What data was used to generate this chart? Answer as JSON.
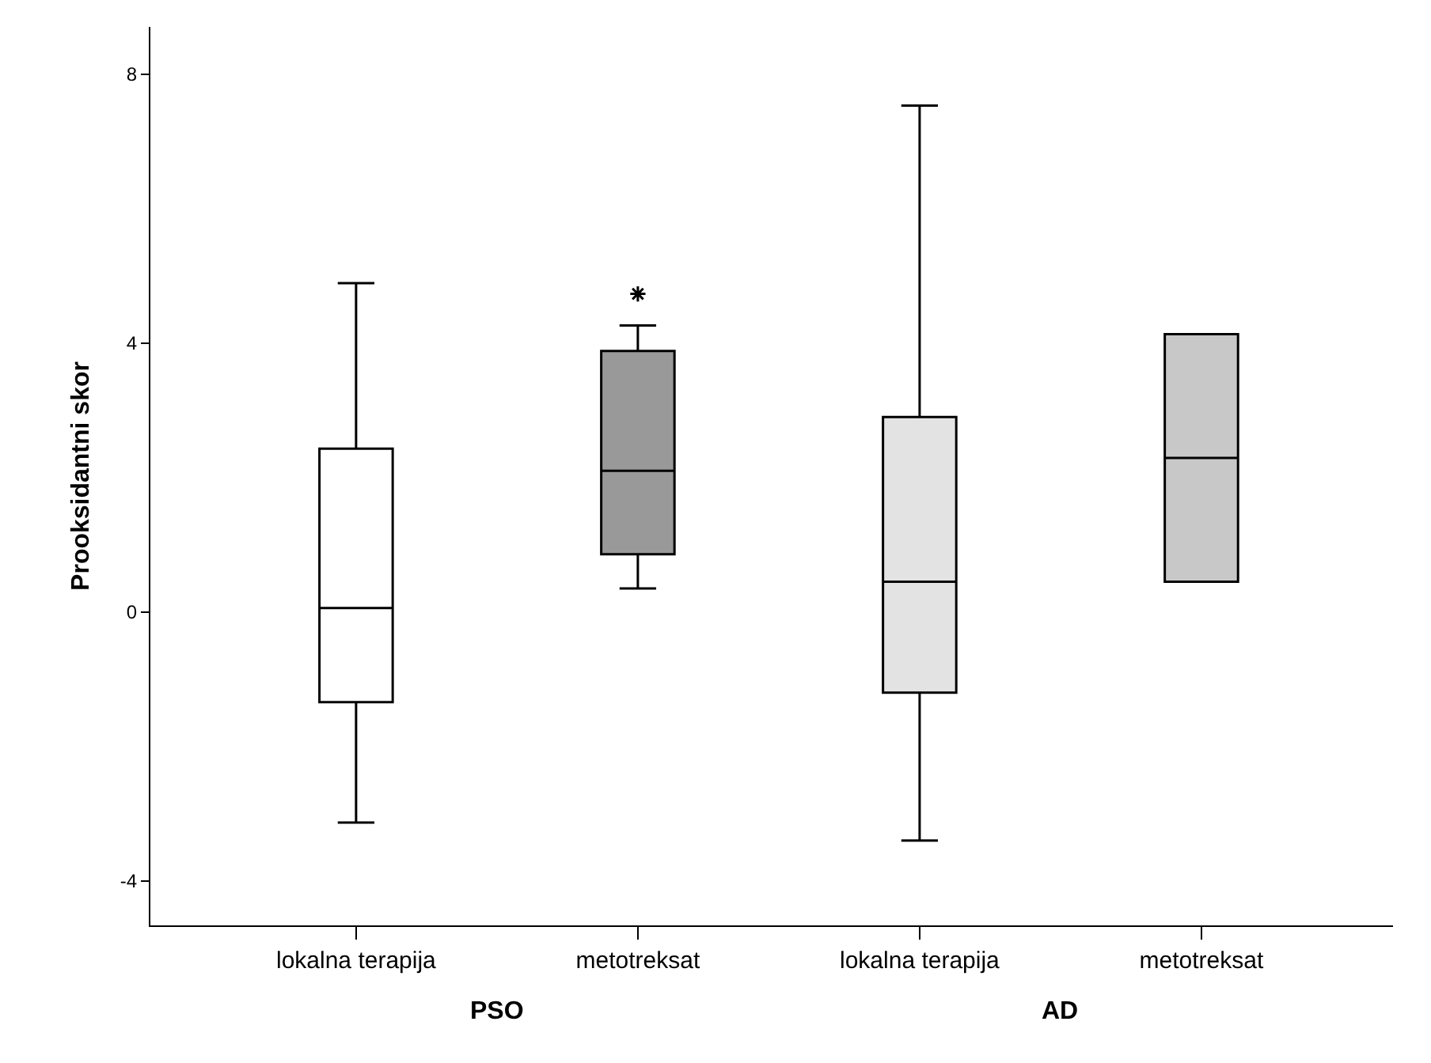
{
  "chart_data": {
    "type": "box",
    "ylabel": "Prooksidantni skor",
    "categories": [
      "lokalna terapija",
      "metotreksat",
      "lokalna terapija",
      "metotreksat"
    ],
    "annotations": [
      "PSO",
      "AD"
    ],
    "colors": [
      "#ffffff",
      "#999999",
      "#e3e3e3",
      "#c8c8c8"
    ],
    "boxes": [
      {
        "low": -3.13,
        "q1": -1.34,
        "median": 0.06,
        "q3": 2.43,
        "high": 4.89
      },
      {
        "low": 0.35,
        "q1": 0.86,
        "median": 2.1,
        "q3": 3.88,
        "high": 4.26,
        "outliers": [
          4.73
        ]
      },
      {
        "low": -3.4,
        "q1": -1.2,
        "median": 0.45,
        "q3": 2.9,
        "high": 7.53
      },
      {
        "low": 0.45,
        "q1": 0.45,
        "median": 2.29,
        "q3": 4.13,
        "high": 4.13
      }
    ],
    "ylim": [
      -4.66,
      8.7
    ],
    "yticks": [
      -4,
      0,
      4,
      8
    ]
  }
}
